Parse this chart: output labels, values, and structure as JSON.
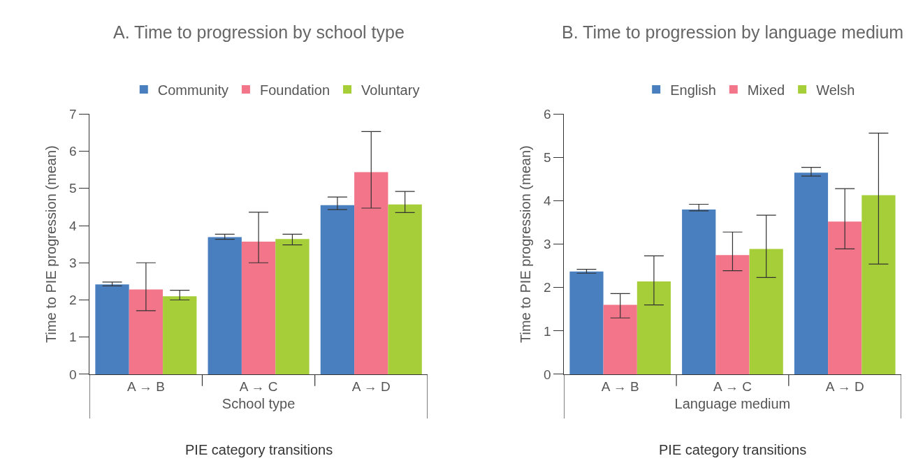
{
  "chart_data": [
    {
      "type": "bar",
      "title": "A. Time to progression by school type",
      "xlabel": "School type",
      "ylabel": "Time to PIE progression (mean)",
      "annotations": [
        "PIE category transitions"
      ],
      "categories": [
        "A → B",
        "A → C",
        "A → D"
      ],
      "ylim": [
        0,
        7
      ],
      "yticks": [
        0,
        1,
        2,
        3,
        4,
        5,
        6,
        7
      ],
      "legend": "top",
      "series": [
        {
          "name": "Community",
          "color": "#4a7fbf",
          "values": [
            2.42,
            3.69,
            4.55
          ],
          "errors": [
            [
              2.38,
              2.48
            ],
            [
              3.63,
              3.77
            ],
            [
              4.43,
              4.77
            ]
          ]
        },
        {
          "name": "Foundation",
          "color": "#f2758a",
          "values": [
            2.28,
            3.57,
            5.44
          ],
          "errors": [
            [
              1.71,
              3.0
            ],
            [
              3.0,
              4.36
            ],
            [
              4.47,
              6.53
            ]
          ]
        },
        {
          "name": "Voluntary",
          "color": "#a6ce39",
          "values": [
            2.1,
            3.64,
            4.57
          ],
          "errors": [
            [
              2.0,
              2.26
            ],
            [
              3.48,
              3.77
            ],
            [
              4.35,
              4.92
            ]
          ]
        }
      ]
    },
    {
      "type": "bar",
      "title": "B. Time to progression by language medium",
      "xlabel": "Language medium",
      "ylabel": "Time to PIE progression (mean)",
      "annotations": [
        "PIE category transitions"
      ],
      "categories": [
        "A → B",
        "A → C",
        "A → D"
      ],
      "ylim": [
        0,
        6
      ],
      "yticks": [
        0,
        1,
        2,
        3,
        4,
        5,
        6
      ],
      "legend": "top",
      "series": [
        {
          "name": "English",
          "color": "#4a7fbf",
          "values": [
            2.37,
            3.8,
            4.65
          ],
          "errors": [
            [
              2.33,
              2.42
            ],
            [
              3.77,
              3.92
            ],
            [
              4.57,
              4.77
            ]
          ]
        },
        {
          "name": "Mixed",
          "color": "#f2758a",
          "values": [
            1.6,
            2.75,
            3.52
          ],
          "errors": [
            [
              1.3,
              1.86
            ],
            [
              2.39,
              3.28
            ],
            [
              2.89,
              4.28
            ]
          ]
        },
        {
          "name": "Welsh",
          "color": "#a6ce39",
          "values": [
            2.14,
            2.89,
            4.13
          ],
          "errors": [
            [
              1.6,
              2.73
            ],
            [
              2.23,
              3.67
            ],
            [
              2.54,
              5.56
            ]
          ]
        }
      ]
    }
  ]
}
